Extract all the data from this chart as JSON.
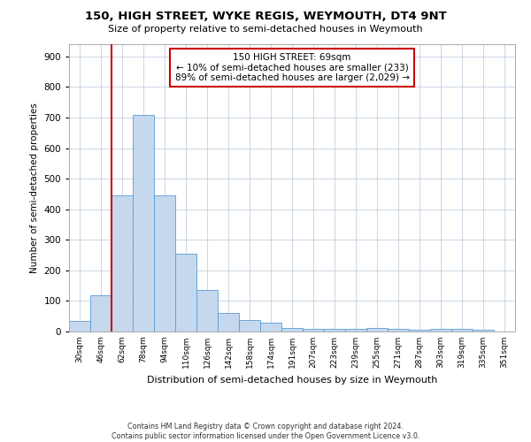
{
  "title1": "150, HIGH STREET, WYKE REGIS, WEYMOUTH, DT4 9NT",
  "title2": "Size of property relative to semi-detached houses in Weymouth",
  "xlabel": "Distribution of semi-detached houses by size in Weymouth",
  "ylabel": "Number of semi-detached properties",
  "categories": [
    "30sqm",
    "46sqm",
    "62sqm",
    "78sqm",
    "94sqm",
    "110sqm",
    "126sqm",
    "142sqm",
    "158sqm",
    "174sqm",
    "191sqm",
    "207sqm",
    "223sqm",
    "239sqm",
    "255sqm",
    "271sqm",
    "287sqm",
    "303sqm",
    "319sqm",
    "335sqm",
    "351sqm"
  ],
  "values": [
    35,
    120,
    445,
    710,
    445,
    255,
    135,
    60,
    38,
    30,
    12,
    10,
    10,
    10,
    12,
    10,
    5,
    10,
    10,
    5,
    0
  ],
  "bar_color": "#c5d8ed",
  "bar_edge_color": "#5b9bd5",
  "annotation_line1": "150 HIGH STREET: 69sqm",
  "annotation_line2": "← 10% of semi-detached houses are smaller (233)",
  "annotation_line3": "89% of semi-detached houses are larger (2,029) →",
  "annotation_box_color": "#ffffff",
  "annotation_box_edge_color": "#cc0000",
  "vline_color": "#cc0000",
  "vline_bar_index": 2,
  "ylim": [
    0,
    940
  ],
  "yticks": [
    0,
    100,
    200,
    300,
    400,
    500,
    600,
    700,
    800,
    900
  ],
  "footer1": "Contains HM Land Registry data © Crown copyright and database right 2024.",
  "footer2": "Contains public sector information licensed under the Open Government Licence v3.0.",
  "background_color": "#ffffff",
  "grid_color": "#b8c8d8"
}
